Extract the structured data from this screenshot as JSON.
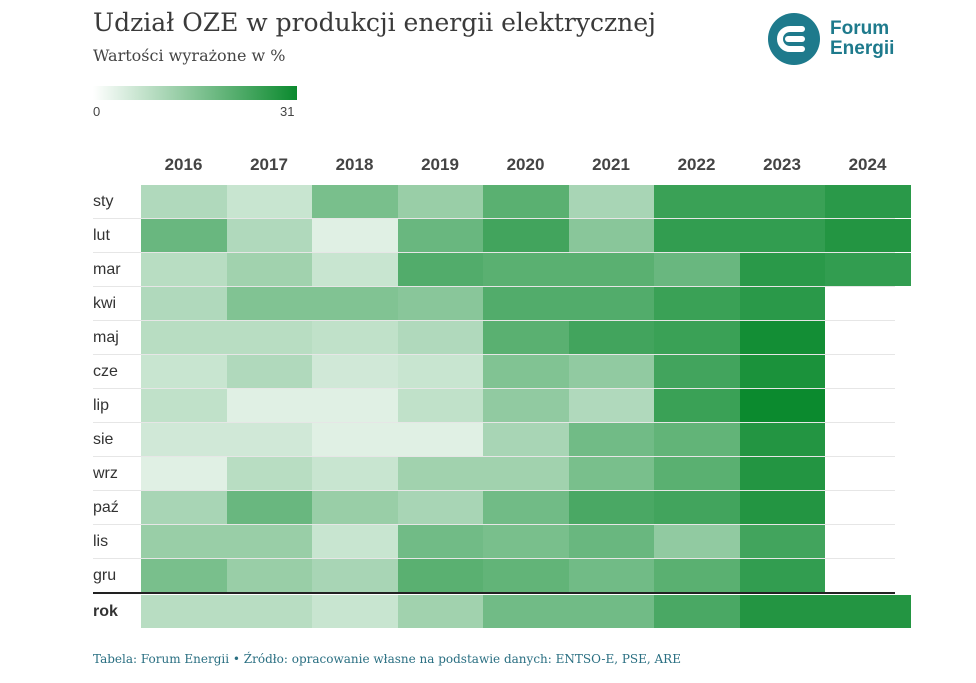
{
  "header": {
    "title": "Udział OZE w produkcji energii elektrycznej",
    "subtitle": "Wartości wyrażone w %"
  },
  "logo": {
    "line1": "Forum",
    "line2": "Energii",
    "accent_color": "#1e7a8c",
    "icon": "forum-energii-e-icon"
  },
  "legend": {
    "min_label": "0",
    "max_label": "31",
    "low_color": "#ffffff",
    "high_color": "#0b8a2e"
  },
  "footer": {
    "text": "Tabela: Forum Energii • Źródło: opracowanie własne na podstawie danych: ENTSO-E, PSE, ARE"
  },
  "chart_data": {
    "type": "heatmap",
    "title": "Udział OZE w produkcji energii elektrycznej",
    "subtitle": "Wartości wyrażone w %",
    "color_scale": {
      "min": 0,
      "max": 31,
      "low_color": "#ffffff",
      "high_color": "#0b8a2e"
    },
    "x": [
      "2016",
      "2017",
      "2018",
      "2019",
      "2020",
      "2021",
      "2022",
      "2023",
      "2024"
    ],
    "y": [
      "sty",
      "lut",
      "mar",
      "kwi",
      "maj",
      "cze",
      "lip",
      "sie",
      "wrz",
      "paź",
      "lis",
      "gru",
      "rok"
    ],
    "values": [
      [
        10,
        7,
        17,
        13,
        21,
        11,
        25,
        25,
        27
      ],
      [
        19,
        10,
        4,
        19,
        24,
        15,
        26,
        26,
        28
      ],
      [
        9,
        12,
        7,
        22,
        21,
        21,
        19,
        27,
        26
      ],
      [
        10,
        16,
        16,
        15,
        22,
        22,
        25,
        27,
        null
      ],
      [
        9,
        9,
        8,
        10,
        21,
        24,
        25,
        30,
        null
      ],
      [
        7,
        10,
        6,
        7,
        16,
        14,
        24,
        29,
        null
      ],
      [
        8,
        4,
        4,
        8,
        14,
        10,
        25,
        31,
        null
      ],
      [
        6,
        6,
        4,
        4,
        11,
        18,
        20,
        28,
        null
      ],
      [
        4,
        9,
        7,
        12,
        12,
        17,
        21,
        28,
        null
      ],
      [
        11,
        19,
        13,
        11,
        18,
        23,
        24,
        28,
        null
      ],
      [
        13,
        13,
        7,
        18,
        17,
        19,
        14,
        24,
        null
      ],
      [
        17,
        13,
        11,
        21,
        20,
        18,
        21,
        26,
        null
      ],
      [
        9,
        9,
        7,
        12,
        18,
        18,
        23,
        28,
        28
      ]
    ]
  }
}
